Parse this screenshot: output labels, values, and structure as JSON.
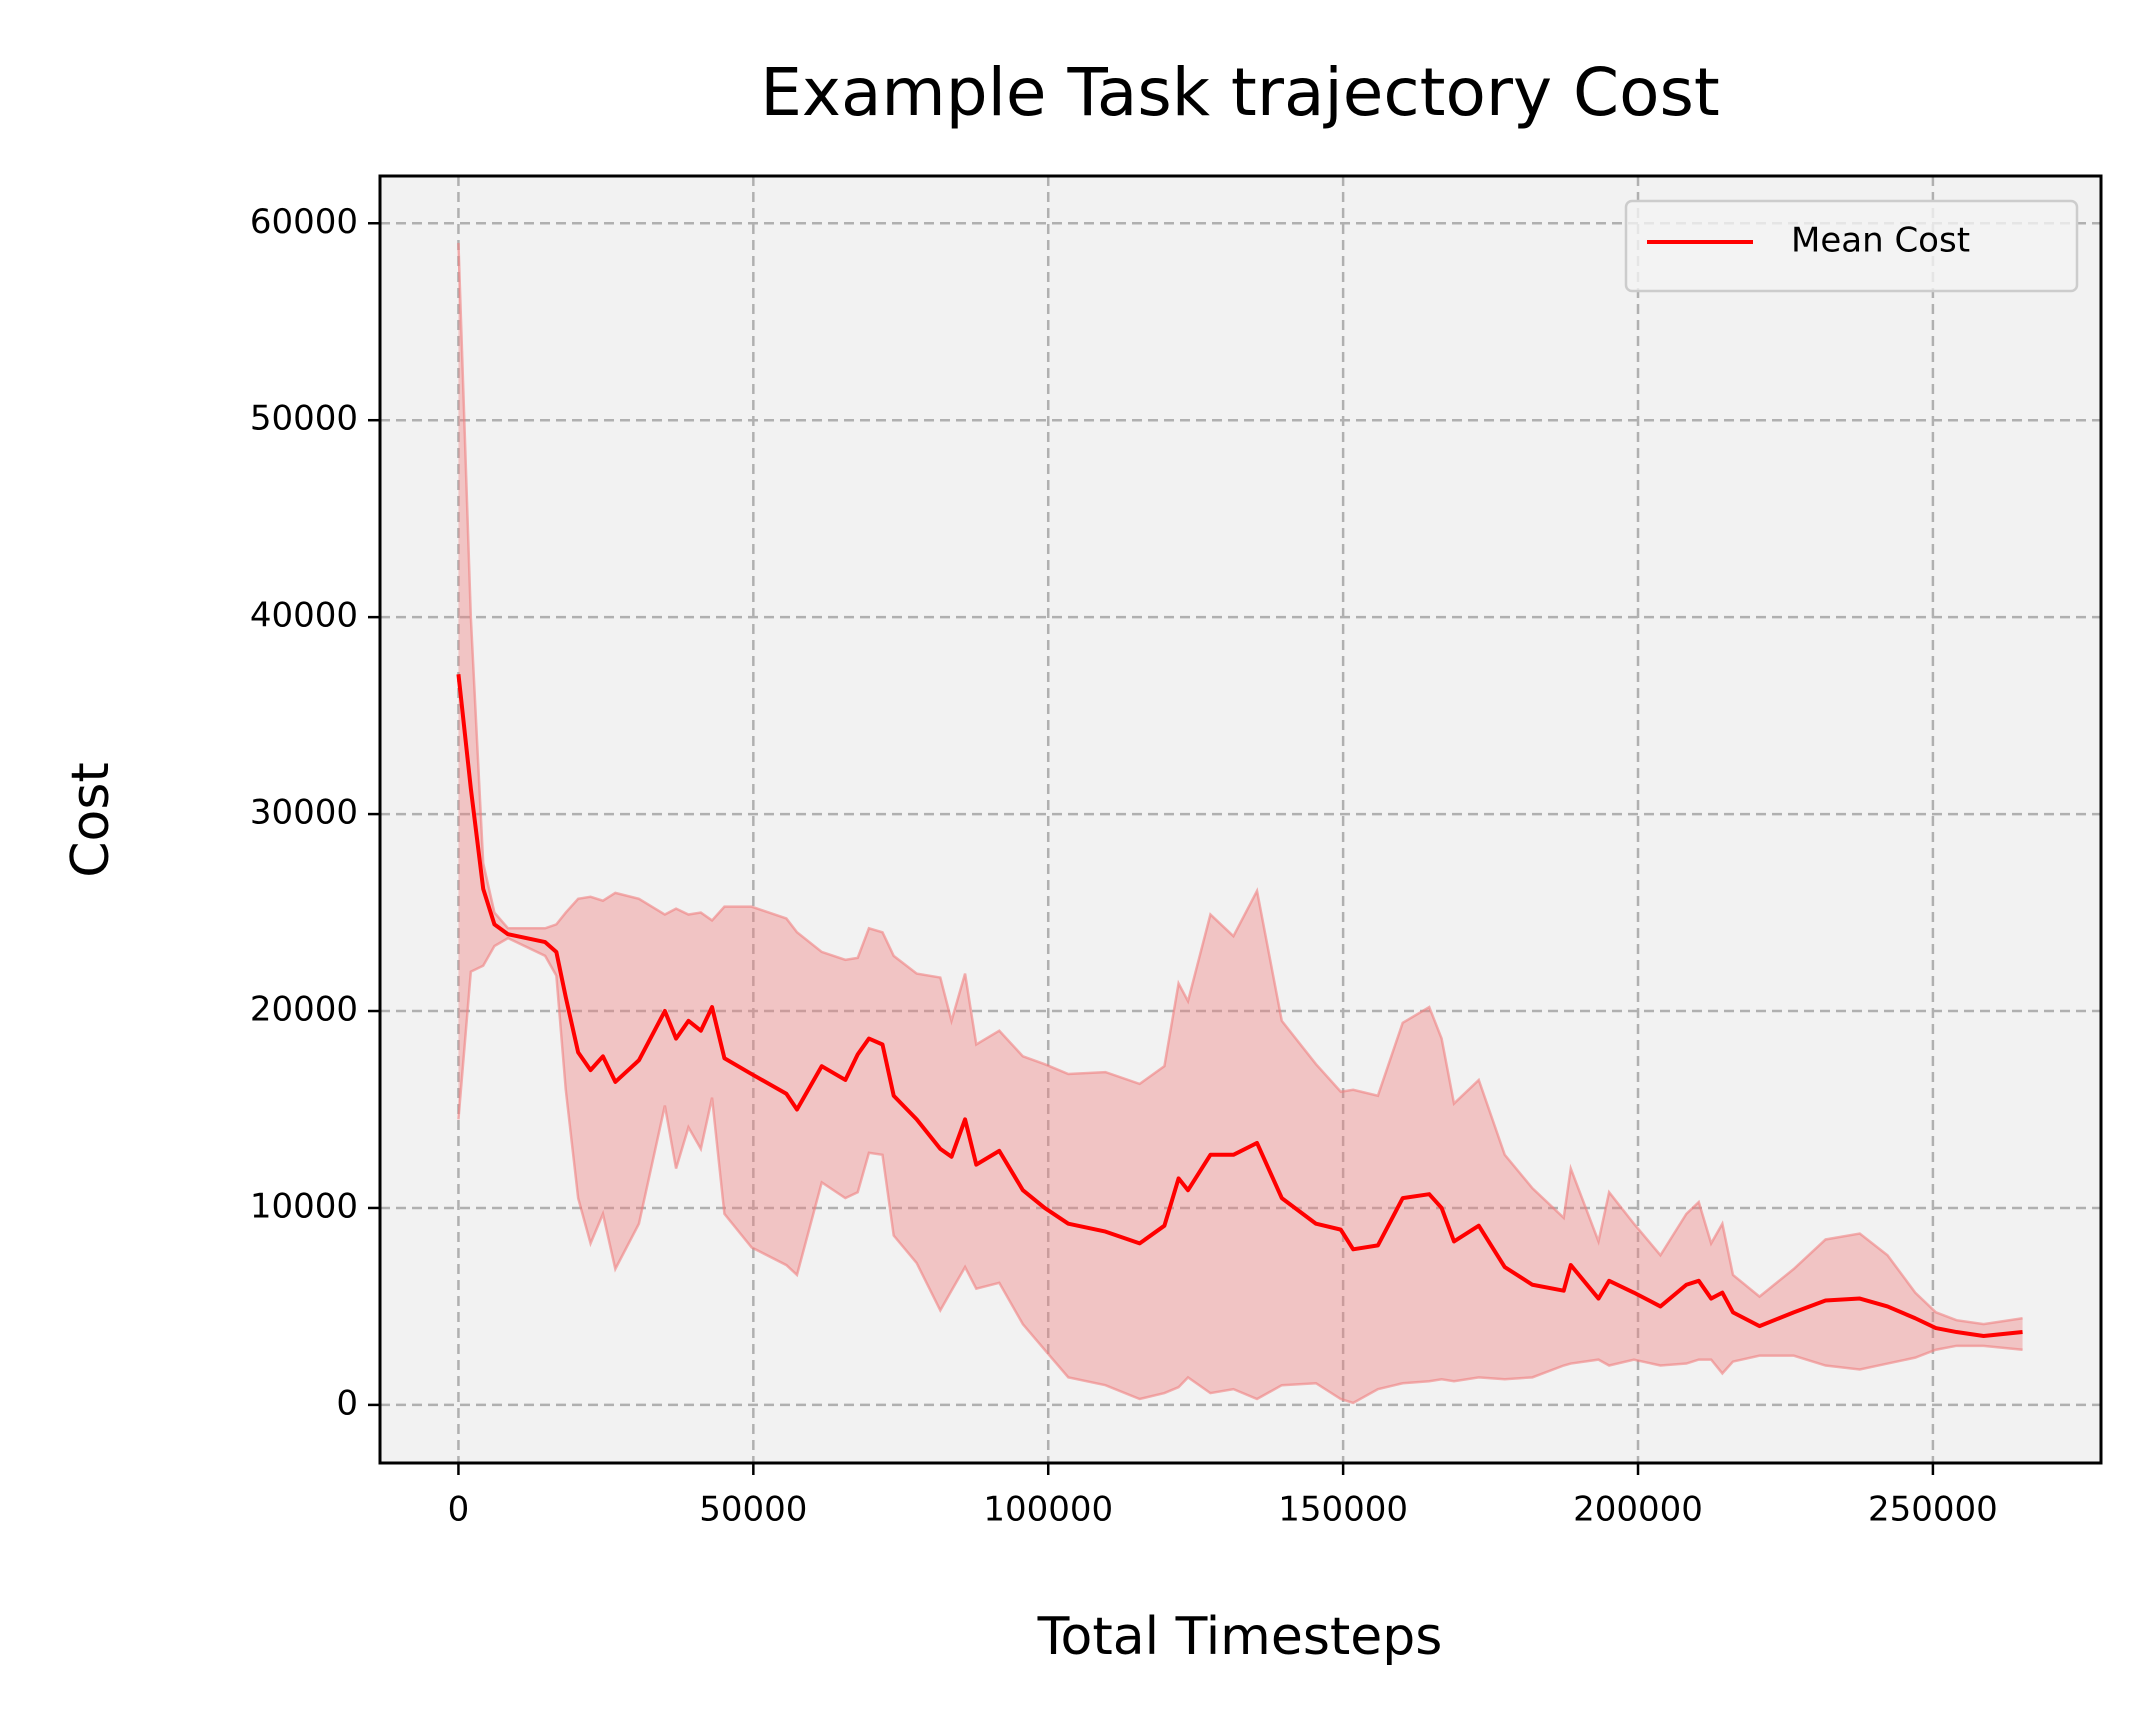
{
  "chart_data": {
    "type": "line",
    "title": "Example Task trajectory Cost",
    "x_label": "Total Timesteps",
    "y_label": "Cost",
    "xlim": [
      -13300,
      278500
    ],
    "ylim": [
      -2950,
      62400
    ],
    "xticks": [
      0,
      50000,
      100000,
      150000,
      200000,
      250000
    ],
    "yticks": [
      0,
      10000,
      20000,
      30000,
      40000,
      50000,
      60000
    ],
    "grid": true,
    "legend": "upper right",
    "x": [
      0,
      2100,
      4200,
      6100,
      8400,
      14700,
      16600,
      18200,
      20300,
      22400,
      24500,
      26600,
      30600,
      35000,
      36900,
      39000,
      41100,
      43000,
      45100,
      49700,
      55600,
      57400,
      61600,
      65600,
      67700,
      69600,
      71900,
      73800,
      77700,
      81700,
      83600,
      85900,
      87800,
      91700,
      95700,
      99400,
      103400,
      109700,
      115500,
      119700,
      122100,
      123700,
      127500,
      131400,
      135400,
      139600,
      145400,
      149600,
      151700,
      155900,
      160100,
      164600,
      166700,
      168800,
      173000,
      177400,
      182100,
      187400,
      188600,
      193300,
      195100,
      199300,
      203800,
      208200,
      210300,
      212400,
      214300,
      216100,
      220600,
      226400,
      231800,
      237600,
      242300,
      247000,
      250500,
      254000,
      258600,
      265200
    ],
    "series": [
      {
        "name": "Mean Cost",
        "color": "#ff0000",
        "values": [
          37100,
          31300,
          26200,
          24400,
          23900,
          23500,
          23000,
          20700,
          17900,
          17000,
          17700,
          16400,
          17500,
          20000,
          18600,
          19500,
          19000,
          20200,
          17600,
          16800,
          15800,
          15000,
          17200,
          16500,
          17800,
          18600,
          18300,
          15700,
          14500,
          13000,
          12600,
          14500,
          12200,
          12900,
          10900,
          10000,
          9200,
          8800,
          8200,
          9100,
          11500,
          10900,
          12700,
          12700,
          13300,
          10500,
          9200,
          8900,
          7900,
          8100,
          10500,
          10700,
          10000,
          8300,
          9100,
          7000,
          6100,
          5800,
          7100,
          5400,
          6300,
          5700,
          5000,
          6100,
          6300,
          5400,
          5700,
          4700,
          4000,
          4700,
          5300,
          5400,
          5000,
          4400,
          3900,
          3700,
          3500,
          3700
        ]
      }
    ],
    "fill_between": {
      "color": "#f08080",
      "upper": [
        59000,
        40000,
        27500,
        25000,
        24200,
        24200,
        24400,
        25000,
        25700,
        25800,
        25600,
        26000,
        25700,
        24900,
        25200,
        24900,
        25000,
        24600,
        25300,
        25300,
        24700,
        24000,
        23000,
        22600,
        22700,
        24200,
        24000,
        22800,
        21900,
        21700,
        19500,
        21900,
        18300,
        19000,
        17700,
        17300,
        16800,
        16900,
        16300,
        17200,
        21400,
        20500,
        24900,
        23800,
        26100,
        19500,
        17300,
        15900,
        16000,
        15700,
        19400,
        20200,
        18600,
        15300,
        16500,
        12700,
        11000,
        9500,
        12000,
        8300,
        10800,
        9200,
        7600,
        9700,
        10300,
        8200,
        9200,
        6600,
        5500,
        6900,
        8400,
        8700,
        7600,
        5700,
        4700,
        4300,
        4100,
        4400
      ],
      "lower": [
        14500,
        22000,
        22300,
        23300,
        23700,
        22800,
        21800,
        16000,
        10500,
        8200,
        9700,
        6900,
        9200,
        15200,
        12000,
        14100,
        13000,
        15600,
        9700,
        8000,
        7100,
        6600,
        11300,
        10500,
        10800,
        12800,
        12700,
        8600,
        7200,
        4800,
        5800,
        7000,
        5900,
        6200,
        4100,
        2800,
        1400,
        1000,
        300,
        600,
        900,
        1400,
        600,
        800,
        300,
        1000,
        1100,
        300,
        100,
        800,
        1100,
        1200,
        1300,
        1200,
        1400,
        1300,
        1400,
        2000,
        2100,
        2300,
        2000,
        2300,
        2000,
        2100,
        2300,
        2300,
        1600,
        2200,
        2500,
        2500,
        2000,
        1800,
        2100,
        2400,
        2800,
        3000,
        3000,
        2800
      ]
    }
  }
}
